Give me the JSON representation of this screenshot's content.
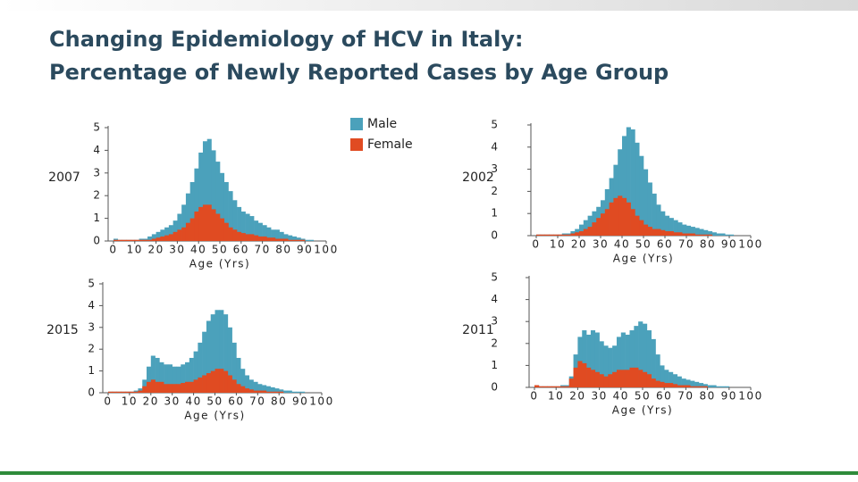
{
  "slide": {
    "title": [
      "Changing Epidemiology of HCV in Italy:",
      "Percentage of Newly Reported Cases by Age Group"
    ]
  },
  "chart_data": [
    {
      "type": "bar",
      "label": "2007",
      "xlabel": "Age (Yrs)",
      "legend": "top-right",
      "x": [
        0,
        2,
        4,
        6,
        8,
        10,
        12,
        14,
        16,
        18,
        20,
        22,
        24,
        26,
        28,
        30,
        32,
        34,
        36,
        38,
        40,
        42,
        44,
        46,
        48,
        50,
        52,
        54,
        56,
        58,
        60,
        62,
        64,
        66,
        68,
        70,
        72,
        74,
        76,
        78,
        80,
        82,
        84,
        86,
        88,
        90,
        92,
        94,
        96,
        98
      ],
      "xlim": [
        0,
        100
      ],
      "xticks": [
        0,
        10,
        20,
        30,
        40,
        50,
        60,
        70,
        80,
        90,
        100
      ],
      "ylim": [
        0,
        5
      ],
      "yticks": [
        0,
        1,
        2,
        3,
        4,
        5
      ],
      "series": [
        {
          "name": "Male",
          "color": "#4ba1bb",
          "values": [
            0.1,
            0.05,
            0.05,
            0.05,
            0.05,
            0.05,
            0.1,
            0.1,
            0.2,
            0.3,
            0.4,
            0.5,
            0.6,
            0.7,
            0.9,
            1.2,
            1.6,
            2.1,
            2.6,
            3.2,
            3.9,
            4.4,
            4.5,
            4.0,
            3.5,
            3.0,
            2.6,
            2.2,
            1.8,
            1.5,
            1.3,
            1.2,
            1.1,
            0.9,
            0.8,
            0.7,
            0.6,
            0.5,
            0.5,
            0.4,
            0.3,
            0.25,
            0.2,
            0.15,
            0.1,
            0.05,
            0.05,
            0,
            0,
            0
          ]
        },
        {
          "name": "Female",
          "color": "#e04b22",
          "values": [
            0.05,
            0.05,
            0.05,
            0.05,
            0.05,
            0.05,
            0.05,
            0.05,
            0.05,
            0.1,
            0.15,
            0.2,
            0.25,
            0.3,
            0.4,
            0.5,
            0.6,
            0.8,
            1.0,
            1.3,
            1.5,
            1.6,
            1.6,
            1.4,
            1.2,
            1.0,
            0.8,
            0.6,
            0.5,
            0.4,
            0.35,
            0.3,
            0.3,
            0.25,
            0.2,
            0.2,
            0.15,
            0.15,
            0.1,
            0.1,
            0.1,
            0.05,
            0.05,
            0.05,
            0.05,
            0,
            0,
            0,
            0,
            0
          ]
        }
      ]
    },
    {
      "type": "bar",
      "label": "2002",
      "xlabel": "Age (Yrs)",
      "x": [
        0,
        2,
        4,
        6,
        8,
        10,
        12,
        14,
        16,
        18,
        20,
        22,
        24,
        26,
        28,
        30,
        32,
        34,
        36,
        38,
        40,
        42,
        44,
        46,
        48,
        50,
        52,
        54,
        56,
        58,
        60,
        62,
        64,
        66,
        68,
        70,
        72,
        74,
        76,
        78,
        80,
        82,
        84,
        86,
        88,
        90,
        92,
        94,
        96,
        98
      ],
      "xlim": [
        0,
        100
      ],
      "xticks": [
        0,
        10,
        20,
        30,
        40,
        50,
        60,
        70,
        80,
        90,
        100
      ],
      "ylim": [
        0,
        5
      ],
      "yticks": [
        0,
        1,
        2,
        3,
        4,
        5
      ],
      "series": [
        {
          "color": "#4ba1bb",
          "values": [
            0.05,
            0.05,
            0.05,
            0.05,
            0.05,
            0.05,
            0.1,
            0.1,
            0.2,
            0.3,
            0.5,
            0.7,
            0.9,
            1.1,
            1.3,
            1.6,
            2.1,
            2.6,
            3.2,
            3.9,
            4.5,
            4.9,
            4.8,
            4.2,
            3.6,
            3.0,
            2.4,
            1.9,
            1.4,
            1.1,
            0.9,
            0.8,
            0.7,
            0.6,
            0.5,
            0.45,
            0.4,
            0.35,
            0.3,
            0.25,
            0.2,
            0.15,
            0.1,
            0.1,
            0.05,
            0.05,
            0,
            0,
            0,
            0
          ]
        },
        {
          "color": "#e04b22",
          "values": [
            0.05,
            0.05,
            0.05,
            0.05,
            0.05,
            0.05,
            0.05,
            0.05,
            0.1,
            0.15,
            0.2,
            0.3,
            0.4,
            0.6,
            0.8,
            1.0,
            1.2,
            1.5,
            1.7,
            1.8,
            1.7,
            1.5,
            1.2,
            0.9,
            0.7,
            0.5,
            0.4,
            0.3,
            0.3,
            0.25,
            0.2,
            0.2,
            0.15,
            0.15,
            0.1,
            0.1,
            0.1,
            0.05,
            0.05,
            0.05,
            0.05,
            0,
            0,
            0,
            0,
            0,
            0,
            0,
            0,
            0
          ]
        }
      ]
    },
    {
      "type": "bar",
      "label": "2015",
      "xlabel": "Age (Yrs)",
      "x": [
        0,
        2,
        4,
        6,
        8,
        10,
        12,
        14,
        16,
        18,
        20,
        22,
        24,
        26,
        28,
        30,
        32,
        34,
        36,
        38,
        40,
        42,
        44,
        46,
        48,
        50,
        52,
        54,
        56,
        58,
        60,
        62,
        64,
        66,
        68,
        70,
        72,
        74,
        76,
        78,
        80,
        82,
        84,
        86,
        88,
        90,
        92,
        94,
        96,
        98
      ],
      "xlim": [
        0,
        100
      ],
      "xticks": [
        0,
        10,
        20,
        30,
        40,
        50,
        60,
        70,
        80,
        90,
        100
      ],
      "ylim": [
        0,
        5
      ],
      "yticks": [
        0,
        1,
        2,
        3,
        4,
        5
      ],
      "series": [
        {
          "color": "#4ba1bb",
          "values": [
            0.05,
            0.05,
            0.05,
            0.05,
            0.05,
            0.05,
            0.1,
            0.2,
            0.6,
            1.2,
            1.7,
            1.6,
            1.4,
            1.3,
            1.3,
            1.2,
            1.2,
            1.3,
            1.4,
            1.6,
            1.9,
            2.3,
            2.8,
            3.3,
            3.6,
            3.8,
            3.8,
            3.6,
            3.0,
            2.3,
            1.6,
            1.1,
            0.8,
            0.6,
            0.5,
            0.4,
            0.35,
            0.3,
            0.25,
            0.2,
            0.15,
            0.1,
            0.1,
            0.05,
            0.05,
            0.05,
            0,
            0,
            0,
            0
          ]
        },
        {
          "color": "#e04b22",
          "values": [
            0.05,
            0.05,
            0.05,
            0.05,
            0.05,
            0.05,
            0.05,
            0.1,
            0.3,
            0.5,
            0.6,
            0.5,
            0.5,
            0.4,
            0.4,
            0.4,
            0.4,
            0.45,
            0.5,
            0.5,
            0.6,
            0.7,
            0.8,
            0.9,
            1.0,
            1.1,
            1.1,
            1.0,
            0.8,
            0.6,
            0.4,
            0.3,
            0.2,
            0.15,
            0.1,
            0.1,
            0.1,
            0.05,
            0.05,
            0.05,
            0.05,
            0,
            0,
            0,
            0,
            0,
            0,
            0,
            0,
            0
          ]
        }
      ]
    },
    {
      "type": "bar",
      "label": "2011",
      "xlabel": "Age (Yrs)",
      "x": [
        0,
        2,
        4,
        6,
        8,
        10,
        12,
        14,
        16,
        18,
        20,
        22,
        24,
        26,
        28,
        30,
        32,
        34,
        36,
        38,
        40,
        42,
        44,
        46,
        48,
        50,
        52,
        54,
        56,
        58,
        60,
        62,
        64,
        66,
        68,
        70,
        72,
        74,
        76,
        78,
        80,
        82,
        84,
        86,
        88,
        90,
        92,
        94,
        96,
        98
      ],
      "xlim": [
        0,
        100
      ],
      "xticks": [
        0,
        10,
        20,
        30,
        40,
        50,
        60,
        70,
        80,
        90,
        100
      ],
      "ylim": [
        0,
        5
      ],
      "yticks": [
        0,
        1,
        2,
        3,
        4,
        5
      ],
      "series": [
        {
          "color": "#4ba1bb",
          "values": [
            0.1,
            0.05,
            0.05,
            0.05,
            0.05,
            0.05,
            0.1,
            0.1,
            0.5,
            1.5,
            2.3,
            2.6,
            2.4,
            2.6,
            2.5,
            2.1,
            1.9,
            1.8,
            1.9,
            2.3,
            2.5,
            2.4,
            2.6,
            2.8,
            3.0,
            2.9,
            2.6,
            2.2,
            1.5,
            1.0,
            0.8,
            0.7,
            0.6,
            0.5,
            0.4,
            0.35,
            0.3,
            0.25,
            0.2,
            0.15,
            0.1,
            0.1,
            0.05,
            0.05,
            0.05,
            0,
            0,
            0,
            0,
            0
          ]
        },
        {
          "color": "#e04b22",
          "values": [
            0.1,
            0.05,
            0.05,
            0.05,
            0.05,
            0.05,
            0.05,
            0.05,
            0.4,
            0.9,
            1.2,
            1.1,
            0.9,
            0.8,
            0.7,
            0.6,
            0.5,
            0.6,
            0.7,
            0.8,
            0.8,
            0.8,
            0.9,
            0.9,
            0.8,
            0.7,
            0.6,
            0.4,
            0.3,
            0.25,
            0.2,
            0.2,
            0.15,
            0.1,
            0.1,
            0.1,
            0.05,
            0.05,
            0.05,
            0.05,
            0,
            0,
            0,
            0,
            0,
            0,
            0,
            0,
            0,
            0
          ]
        }
      ]
    }
  ]
}
